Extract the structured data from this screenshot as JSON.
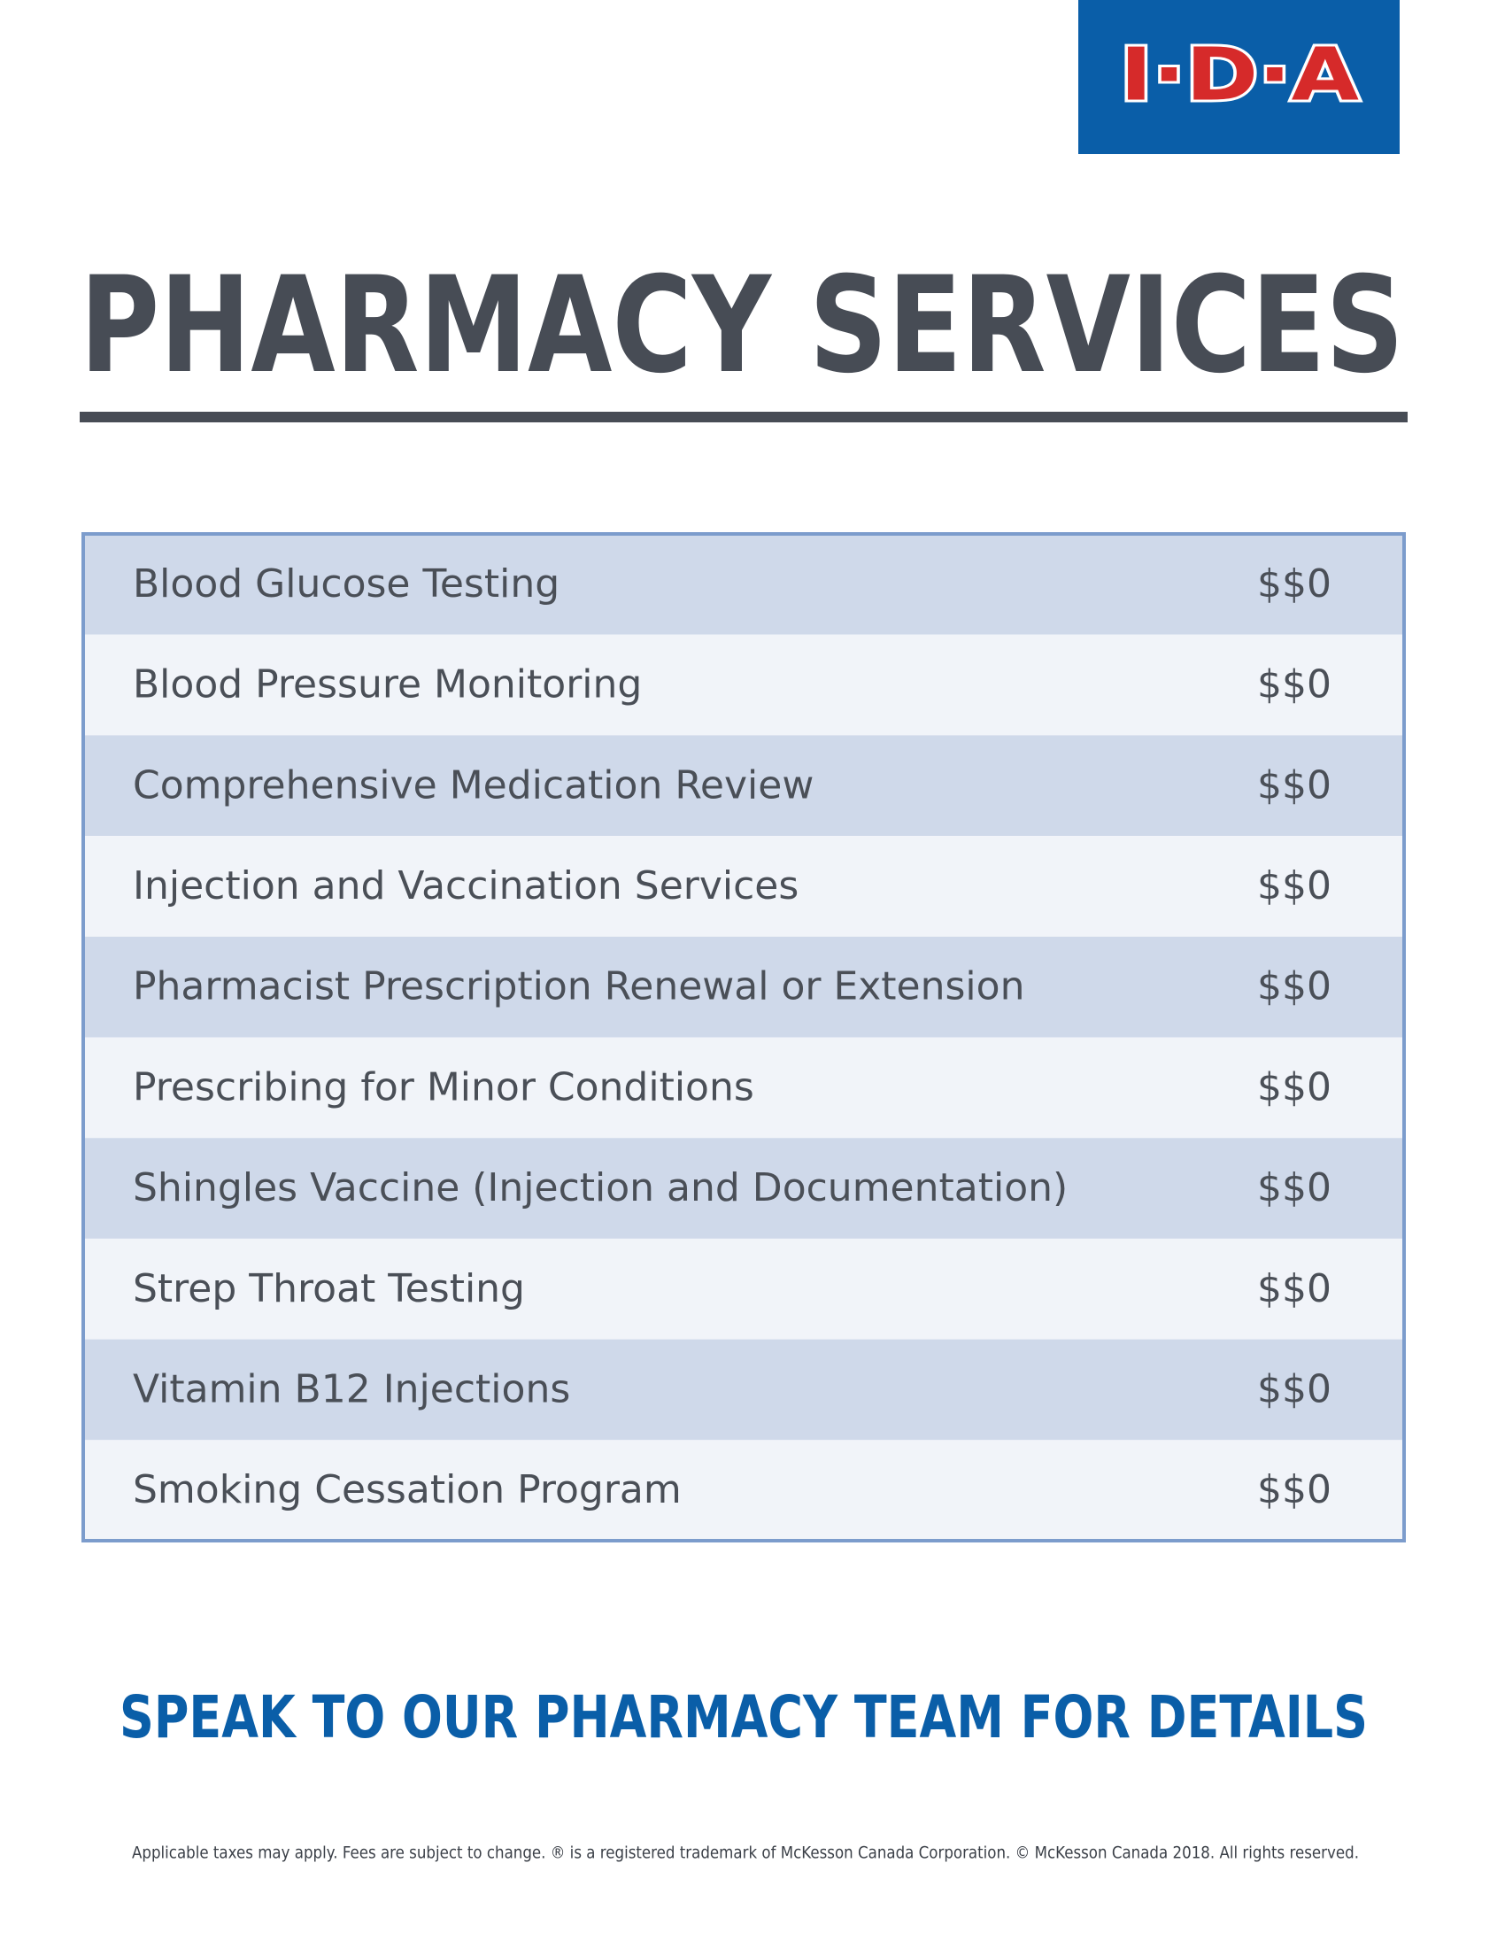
{
  "header": {
    "logo": "I·D·A",
    "title": "PHARMACY SERVICES"
  },
  "table": {
    "rows": [
      [
        "Blood Glucose Testing",
        "$$0"
      ],
      [
        "Blood Pressure Monitoring",
        "$$0"
      ],
      [
        "Comprehensive Medication Review",
        "$$0"
      ],
      [
        "Injection and Vaccination Services",
        "$$0"
      ],
      [
        "Pharmacist Prescription Renewal or Extension",
        "$$0"
      ],
      [
        "Prescribing for Minor Conditions",
        "$$0"
      ],
      [
        "Shingles Vaccine (Injection and Documentation)",
        "$$0"
      ],
      [
        "Strep Throat Testing",
        "$$0"
      ],
      [
        "Vitamin B12 Injections",
        "$$0"
      ],
      [
        "Smoking Cessation Program",
        "$$0"
      ]
    ]
  },
  "cta": "SPEAK TO OUR PHARMACY TEAM FOR DETAILS",
  "footer": "Applicable taxes may apply. Fees are subject to change. ® is a registered trademark of McKesson Canada Corporation. © McKesson Canada 2018. All rights reserved."
}
